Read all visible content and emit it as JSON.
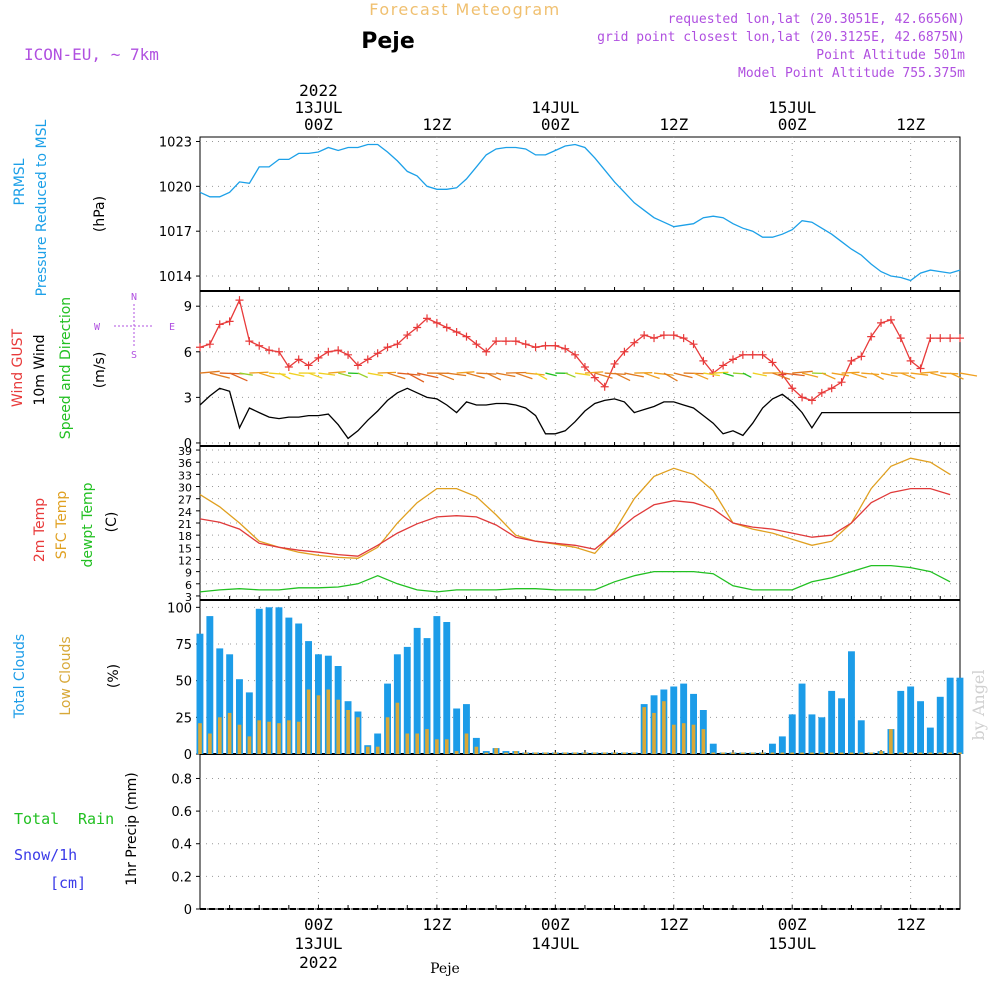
{
  "header": {
    "title": "Forecast Meteogram",
    "location": "Peje",
    "model": "ICON-EU, ~ 7km",
    "requested": "requested lon,lat (20.3051E, 42.6656N)",
    "grid_point": "grid point closest lon,lat (20.3125E, 42.6875N)",
    "point_altitude": "Point Altitude 501m",
    "model_altitude": "Model Point Altitude 755.375m",
    "footer_location": "Peje",
    "watermark": "by Angel"
  },
  "colors": {
    "pressure": "#1ca0e8",
    "gust": "#e83a3a",
    "wind10m": "#000000",
    "temp2m": "#e03a3a",
    "sfc_temp": "#e0a020",
    "dewpt": "#22c022",
    "total_clouds": "#1c9ce8",
    "low_clouds": "#d8a838",
    "total_rain": "#22c022",
    "snow": "#3a3ae8",
    "header_purple": "#b050e0",
    "title_orange": "#f0c070"
  },
  "time_axis": {
    "top_labels": [
      {
        "t": 12,
        "lines": [
          "2022",
          "13JUL",
          "00Z"
        ]
      },
      {
        "t": 24,
        "lines": [
          "12Z"
        ]
      },
      {
        "t": 36,
        "lines": [
          "14JUL",
          "00Z"
        ]
      },
      {
        "t": 48,
        "lines": [
          "12Z"
        ]
      },
      {
        "t": 60,
        "lines": [
          "15JUL",
          "00Z"
        ]
      },
      {
        "t": 72,
        "lines": [
          "12Z"
        ]
      }
    ],
    "bottom_labels": [
      {
        "t": 12,
        "lines": [
          "00Z",
          "13JUL",
          "2022"
        ]
      },
      {
        "t": 24,
        "lines": [
          "12Z"
        ]
      },
      {
        "t": 36,
        "lines": [
          "00Z",
          "14JUL"
        ]
      },
      {
        "t": 48,
        "lines": [
          "12Z"
        ]
      },
      {
        "t": 60,
        "lines": [
          "00Z",
          "15JUL"
        ]
      },
      {
        "t": 72,
        "lines": [
          "12Z"
        ]
      }
    ],
    "range_hours": [
      0,
      77
    ]
  },
  "panels": {
    "pressure": {
      "label_line1": "PRMSL",
      "label_line2": "Pressure Reduced to MSL",
      "unit": "(hPa)",
      "ylim": [
        1013,
        1023.3
      ],
      "ticks": [
        1014,
        1017,
        1020,
        1023
      ]
    },
    "wind": {
      "label_gust": "Wind GUST",
      "label_10m": "10m Wind",
      "label_dir": "Speed and Direction",
      "unit": "(m/s)",
      "compass_n": "N",
      "compass_s": "S",
      "compass_w": "W",
      "compass_e": "E",
      "ylim": [
        -0.2,
        10
      ],
      "ticks": [
        0,
        3,
        6,
        9
      ]
    },
    "temperature": {
      "label_2m": "2m Temp",
      "label_sfc": "SFC Temp",
      "label_dewpt": "dewpt Temp",
      "unit": "(C)",
      "ylim": [
        2,
        40
      ],
      "ticks": [
        3,
        6,
        9,
        12,
        15,
        18,
        21,
        24,
        27,
        30,
        33,
        36,
        39
      ]
    },
    "clouds": {
      "label_total": "Total Clouds",
      "label_low": "Low Clouds",
      "unit": "(%)",
      "ylim": [
        0,
        105
      ],
      "ticks": [
        0,
        25,
        50,
        75,
        100
      ]
    },
    "precip": {
      "label_rain_a": "Total",
      "label_rain_b": "Rain",
      "label_snow_a": "Snow/1h",
      "label_snow_b": "[cm]",
      "unit": "1hr Precip (mm)",
      "ylim": [
        0,
        0.95
      ],
      "ticks": [
        0,
        0.2,
        0.4,
        0.6,
        0.8
      ]
    }
  },
  "chart_data": [
    {
      "type": "line",
      "panel": "pressure",
      "ylabel": "PRMSL Pressure Reduced to MSL (hPa)",
      "x_hours": [
        0,
        1,
        2,
        3,
        4,
        5,
        6,
        7,
        8,
        9,
        10,
        11,
        12,
        13,
        14,
        15,
        16,
        17,
        18,
        19,
        20,
        21,
        22,
        23,
        24,
        25,
        26,
        27,
        28,
        29,
        30,
        31,
        32,
        33,
        34,
        35,
        36,
        37,
        38,
        39,
        40,
        41,
        42,
        43,
        44,
        45,
        46,
        47,
        48,
        49,
        50,
        51,
        52,
        53,
        54,
        55,
        56,
        57,
        58,
        59,
        60,
        61,
        62,
        63,
        64,
        65,
        66,
        67,
        68,
        69,
        70,
        71,
        72,
        73,
        74,
        75,
        76,
        77
      ],
      "series": [
        {
          "values": [
            1019.6,
            1019.3,
            1019.3,
            1019.6,
            1020.3,
            1020.2,
            1021.3,
            1021.3,
            1021.8,
            1021.8,
            1022.2,
            1022.2,
            1022.3,
            1022.6,
            1022.4,
            1022.6,
            1022.6,
            1022.8,
            1022.8,
            1022.3,
            1021.7,
            1021.0,
            1020.7,
            1020.0,
            1019.8,
            1019.8,
            1019.9,
            1020.5,
            1021.3,
            1022.1,
            1022.5,
            1022.6,
            1022.6,
            1022.5,
            1022.1,
            1022.1,
            1022.4,
            1022.7,
            1022.8,
            1022.6,
            1021.9,
            1021.1,
            1020.3,
            1019.6,
            1018.9,
            1018.4,
            1017.9,
            1017.6,
            1017.3,
            1017.4,
            1017.5,
            1017.9,
            1018.0,
            1017.9,
            1017.5,
            1017.2,
            1017.0,
            1016.6,
            1016.6,
            1016.8,
            1017.1,
            1017.7,
            1017.6,
            1017.2,
            1016.8,
            1016.3,
            1015.8,
            1015.4,
            1014.8,
            1014.3,
            1014.0,
            1013.9,
            1013.7,
            1014.2,
            1014.4,
            1014.3,
            1014.2,
            1014.4
          ]
        }
      ]
    },
    {
      "type": "line",
      "panel": "wind",
      "ylabel": "(m/s)",
      "x_hours": [
        0,
        1,
        2,
        3,
        4,
        5,
        6,
        7,
        8,
        9,
        10,
        11,
        12,
        13,
        14,
        15,
        16,
        17,
        18,
        19,
        20,
        21,
        22,
        23,
        24,
        25,
        26,
        27,
        28,
        29,
        30,
        31,
        32,
        33,
        34,
        35,
        36,
        37,
        38,
        39,
        40,
        41,
        42,
        43,
        44,
        45,
        46,
        47,
        48,
        49,
        50,
        51,
        52,
        53,
        54,
        55,
        56,
        57,
        58,
        59,
        60,
        61,
        62,
        63,
        64,
        65,
        66,
        67,
        68,
        69,
        70,
        71,
        72,
        73,
        74,
        75,
        76,
        77
      ],
      "series": [
        {
          "name": "Wind GUST",
          "values": [
            6.3,
            6.5,
            7.8,
            8.0,
            9.4,
            6.7,
            6.4,
            6.1,
            6.0,
            5.0,
            5.5,
            5.1,
            5.6,
            6.0,
            6.1,
            5.8,
            5.1,
            5.5,
            5.9,
            6.3,
            6.5,
            7.1,
            7.6,
            8.2,
            7.9,
            7.6,
            7.3,
            7.0,
            6.5,
            6.0,
            6.7,
            6.7,
            6.7,
            6.5,
            6.3,
            6.4,
            6.4,
            6.2,
            5.8,
            5.0,
            4.3,
            3.7,
            5.2,
            6.0,
            6.6,
            7.1,
            6.9,
            7.1,
            7.1,
            6.9,
            6.5,
            5.4,
            4.6,
            5.1,
            5.5,
            5.8,
            5.8,
            5.8,
            5.3,
            4.5,
            3.6,
            3.0,
            2.8,
            3.3,
            3.6,
            4.0,
            5.4,
            5.7,
            7.0,
            7.9,
            8.1,
            6.9,
            5.4,
            4.9,
            6.9,
            6.9,
            6.9,
            6.9
          ]
        },
        {
          "name": "10m Wind",
          "values": [
            2.5,
            3.1,
            3.6,
            3.4,
            1.0,
            2.3,
            2.0,
            1.7,
            1.6,
            1.7,
            1.7,
            1.8,
            1.8,
            1.9,
            1.2,
            0.3,
            0.8,
            1.5,
            2.1,
            2.8,
            3.3,
            3.6,
            3.3,
            3.0,
            2.9,
            2.5,
            2.0,
            2.7,
            2.5,
            2.5,
            2.6,
            2.6,
            2.5,
            2.3,
            1.8,
            0.6,
            0.6,
            0.8,
            1.4,
            2.1,
            2.6,
            2.8,
            2.9,
            2.7,
            2.0,
            2.2,
            2.4,
            2.7,
            2.7,
            2.5,
            2.3,
            1.8,
            1.3,
            0.6,
            0.8,
            0.5,
            1.3,
            2.3,
            2.9,
            3.2,
            2.7,
            2.0,
            1.0,
            2.0,
            2.0,
            2.0,
            2.0,
            2.0,
            2.0,
            2.0,
            2.0,
            2.0,
            2.0,
            2.0,
            2.0,
            2.0,
            2.0,
            2.0
          ]
        }
      ]
    },
    {
      "type": "line",
      "panel": "temperature",
      "ylabel": "(C)",
      "x_hours": [
        0,
        2,
        4,
        6,
        8,
        10,
        12,
        14,
        16,
        18,
        20,
        22,
        24,
        26,
        28,
        30,
        32,
        34,
        36,
        38,
        40,
        42,
        44,
        46,
        48,
        50,
        52,
        54,
        56,
        58,
        60,
        62,
        64,
        66,
        68,
        70,
        72,
        74,
        76
      ],
      "series": [
        {
          "name": "2m Temp",
          "values": [
            22.0,
            21.2,
            19.5,
            16.0,
            15.0,
            14.3,
            13.8,
            13.2,
            12.8,
            15.5,
            18.5,
            20.8,
            22.5,
            22.8,
            22.5,
            20.5,
            17.5,
            16.5,
            16.0,
            15.5,
            14.5,
            18.5,
            22.5,
            25.5,
            26.5,
            26.0,
            24.5,
            21.0,
            20.0,
            19.5,
            18.5,
            17.5,
            18.0,
            21.0,
            26.0,
            28.5,
            29.5,
            29.5,
            28.0
          ]
        },
        {
          "name": "SFC Temp",
          "values": [
            28.0,
            25.0,
            21.0,
            16.5,
            15.0,
            13.8,
            13.0,
            12.5,
            12.3,
            15.0,
            21.0,
            26.0,
            29.5,
            29.5,
            27.5,
            23.0,
            18.0,
            16.5,
            15.8,
            15.0,
            13.5,
            19.0,
            27.0,
            32.5,
            34.5,
            33.0,
            29.0,
            21.0,
            19.5,
            18.5,
            17.0,
            15.5,
            16.5,
            21.0,
            29.5,
            35.0,
            37.0,
            36.0,
            33.0
          ]
        },
        {
          "name": "dewpt Temp",
          "values": [
            4.0,
            4.5,
            4.8,
            4.5,
            4.5,
            5.0,
            5.0,
            5.2,
            6.0,
            8.0,
            6.0,
            4.5,
            4.0,
            4.5,
            4.5,
            4.5,
            4.8,
            4.8,
            4.5,
            4.5,
            4.5,
            6.5,
            8.0,
            9.0,
            9.0,
            9.0,
            8.5,
            5.5,
            4.5,
            4.5,
            4.5,
            6.5,
            7.5,
            9.0,
            10.5,
            10.5,
            10.0,
            9.0,
            6.5
          ]
        }
      ]
    },
    {
      "type": "bar",
      "panel": "clouds",
      "ylabel": "(%)",
      "x_hours": [
        0,
        1,
        2,
        3,
        4,
        5,
        6,
        7,
        8,
        9,
        10,
        11,
        12,
        13,
        14,
        15,
        16,
        17,
        18,
        19,
        20,
        21,
        22,
        23,
        24,
        25,
        26,
        27,
        28,
        29,
        30,
        31,
        32,
        33,
        34,
        35,
        36,
        37,
        38,
        39,
        40,
        41,
        42,
        43,
        44,
        45,
        46,
        47,
        48,
        49,
        50,
        51,
        52,
        53,
        54,
        55,
        56,
        57,
        58,
        59,
        60,
        61,
        62,
        63,
        64,
        65,
        66,
        67,
        68,
        69,
        70,
        71,
        72,
        73,
        74,
        75,
        76,
        77
      ],
      "series": [
        {
          "name": "Total Clouds",
          "values": [
            82,
            94,
            72,
            68,
            51,
            42,
            99,
            100,
            100,
            93,
            89,
            77,
            68,
            67,
            60,
            36,
            29,
            6,
            14,
            48,
            68,
            73,
            86,
            79,
            94,
            90,
            31,
            34,
            11,
            2,
            4,
            2,
            2,
            1,
            1,
            1,
            1,
            1,
            1,
            1,
            1,
            1,
            1,
            1,
            1,
            34,
            40,
            44,
            46,
            48,
            41,
            30,
            7,
            1,
            1,
            1,
            1,
            1,
            7,
            12,
            27,
            48,
            27,
            25,
            43,
            38,
            70,
            23,
            1,
            2,
            17,
            43,
            46,
            36,
            18,
            39,
            52,
            52
          ]
        },
        {
          "name": "Low Clouds",
          "values": [
            21,
            14,
            25,
            28,
            20,
            12,
            23,
            22,
            21,
            23,
            22,
            44,
            40,
            44,
            37,
            30,
            25,
            5,
            5,
            25,
            35,
            14,
            14,
            17,
            10,
            10,
            2,
            14,
            5,
            1,
            4,
            1,
            2,
            1,
            1,
            1,
            1,
            1,
            1,
            1,
            1,
            1,
            1,
            1,
            1,
            32,
            28,
            36,
            20,
            21,
            20,
            17,
            1,
            1,
            1,
            1,
            1,
            1,
            1,
            1,
            1,
            1,
            1,
            1,
            1,
            1,
            1,
            1,
            1,
            2,
            17,
            1,
            1,
            1,
            1,
            1,
            1,
            1
          ]
        }
      ]
    },
    {
      "type": "bar",
      "panel": "precip",
      "ylabel": "1hr Precip (mm)",
      "x_hours": [
        0,
        77
      ],
      "series": [
        {
          "name": "Total Rain",
          "values": [
            0,
            0
          ]
        },
        {
          "name": "Snow/1h",
          "values": [
            0,
            0
          ]
        }
      ]
    }
  ]
}
